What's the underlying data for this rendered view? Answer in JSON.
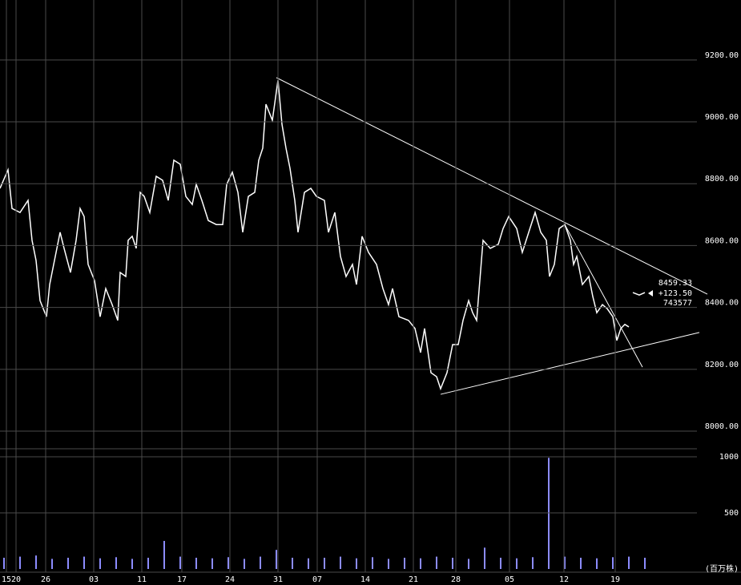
{
  "chart_data": {
    "type": "line",
    "color": "#ffffff",
    "grid": true,
    "xlim": [
      0,
      870
    ],
    "ylim": [
      7943,
      9394
    ],
    "xticks": [
      {
        "value": 8,
        "label": "15"
      },
      {
        "value": 20,
        "label": "20"
      },
      {
        "value": 57,
        "label": "26"
      },
      {
        "value": 117,
        "label": "03"
      },
      {
        "value": 177,
        "label": "11"
      },
      {
        "value": 227,
        "label": "17"
      },
      {
        "value": 287,
        "label": "24"
      },
      {
        "value": 347,
        "label": "31"
      },
      {
        "value": 396,
        "label": "07"
      },
      {
        "value": 456,
        "label": "14"
      },
      {
        "value": 516,
        "label": "21"
      },
      {
        "value": 569,
        "label": "28"
      },
      {
        "value": 636,
        "label": "05"
      },
      {
        "value": 704,
        "label": "12"
      },
      {
        "value": 768,
        "label": "19"
      }
    ],
    "yticks": [
      {
        "value": 8000,
        "label": "8000.00"
      },
      {
        "value": 8200,
        "label": "8200.00"
      },
      {
        "value": 8400,
        "label": "8400.00"
      },
      {
        "value": 8600,
        "label": "8600.00"
      },
      {
        "value": 8800,
        "label": "8800.00"
      },
      {
        "value": 9000,
        "label": "9000.00"
      },
      {
        "value": 9200,
        "label": "9200.00"
      }
    ],
    "x": [
      0,
      10,
      15,
      25,
      35,
      40,
      45,
      50,
      58,
      62,
      67,
      75,
      80,
      88,
      95,
      100,
      105,
      110,
      118,
      125,
      132,
      140,
      147,
      150,
      157,
      160,
      165,
      170,
      175,
      180,
      187,
      195,
      203,
      210,
      217,
      225,
      232,
      240,
      245,
      252,
      260,
      270,
      278,
      283,
      290,
      297,
      303,
      310,
      318,
      323,
      328,
      332,
      340,
      347,
      352,
      357,
      362,
      368,
      372,
      380,
      388,
      395,
      405,
      410,
      418,
      425,
      432,
      440,
      445,
      452,
      460,
      470,
      478,
      485,
      490,
      498,
      510,
      518,
      525,
      530,
      538,
      545,
      550,
      558,
      565,
      572,
      578,
      585,
      590,
      595,
      603,
      612,
      622,
      628,
      635,
      645,
      652,
      660,
      668,
      675,
      682,
      686,
      692,
      698,
      705,
      712,
      716,
      720,
      727,
      735,
      740,
      745,
      752,
      758,
      765,
      770,
      775,
      780,
      785,
      786,
      790,
      798,
      805
    ],
    "values": [
      8785,
      8845,
      8720,
      8707,
      8746,
      8617,
      8552,
      8422,
      8370,
      8474,
      8539,
      8643,
      8591,
      8513,
      8617,
      8720,
      8694,
      8539,
      8487,
      8370,
      8461,
      8409,
      8358,
      8513,
      8500,
      8617,
      8630,
      8591,
      8772,
      8759,
      8707,
      8824,
      8811,
      8746,
      8876,
      8863,
      8759,
      8733,
      8798,
      8746,
      8681,
      8668,
      8668,
      8798,
      8837,
      8772,
      8643,
      8759,
      8772,
      8876,
      8915,
      9057,
      9005,
      9135,
      8992,
      8915,
      8850,
      8746,
      8643,
      8772,
      8785,
      8759,
      8746,
      8643,
      8707,
      8565,
      8500,
      8539,
      8474,
      8630,
      8578,
      8539,
      8461,
      8409,
      8461,
      8370,
      8358,
      8332,
      8254,
      8332,
      8189,
      8176,
      8137,
      8189,
      8280,
      8280,
      8358,
      8422,
      8383,
      8358,
      8617,
      8591,
      8604,
      8655,
      8694,
      8655,
      8578,
      8643,
      8707,
      8643,
      8617,
      8500,
      8539,
      8655,
      8668,
      8617,
      8539,
      8565,
      8474,
      8500,
      8435,
      8383,
      8409,
      8396,
      8370,
      8293,
      8332,
      8345,
      8337,
      null,
      8448,
      8440,
      8448
    ],
    "trendlines": [
      {
        "x": [
          345,
          883
        ],
        "values": [
          9143,
          8443
        ]
      },
      {
        "x": [
          550,
          873
        ],
        "values": [
          8119,
          8319
        ]
      },
      {
        "x": [
          705,
          802
        ],
        "values": [
          8668,
          8207
        ]
      }
    ],
    "annotation": [
      "8459.33",
      "+123.50",
      "743577"
    ],
    "volume": {
      "unit": "(百万株)",
      "color": "#8c8cff",
      "ylim": [
        0,
        1071
      ],
      "yticks": [
        500,
        1000
      ],
      "x": [
        5,
        25,
        45,
        65,
        85,
        105,
        125,
        145,
        165,
        185,
        205,
        225,
        245,
        265,
        285,
        305,
        325,
        345,
        365,
        385,
        405,
        425,
        445,
        465,
        485,
        505,
        525,
        545,
        565,
        585,
        605,
        625,
        645,
        665,
        685,
        705,
        725,
        745,
        765,
        785,
        805
      ],
      "values": [
        100,
        110,
        120,
        90,
        100,
        110,
        95,
        105,
        90,
        100,
        250,
        110,
        100,
        95,
        105,
        90,
        110,
        170,
        100,
        95,
        100,
        110,
        95,
        105,
        90,
        100,
        95,
        110,
        100,
        90,
        190,
        100,
        95,
        105,
        990,
        110,
        100,
        95,
        105,
        110,
        100
      ]
    }
  }
}
